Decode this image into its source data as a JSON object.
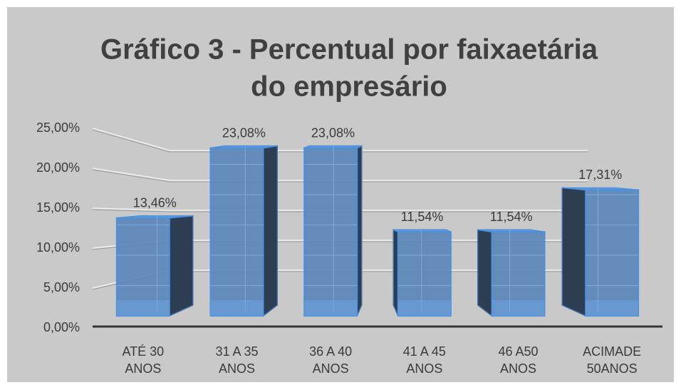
{
  "chart_data": {
    "type": "bar3d",
    "title": [
      "Gráfico 3 - Percentual por faixaetária",
      "do empresário"
    ],
    "categories": [
      [
        "ATÉ 30",
        "ANOS"
      ],
      [
        "31 A 35",
        "ANOS"
      ],
      [
        "36 A 40",
        "ANOS"
      ],
      [
        "41 A 45",
        "ANOS"
      ],
      [
        "46 A50",
        "ANOS"
      ],
      [
        "ACIMADE",
        "50ANOS"
      ]
    ],
    "values": [
      13.46,
      23.08,
      23.08,
      11.54,
      11.54,
      17.31
    ],
    "value_labels": [
      "13,46%",
      "23,08%",
      "23,08%",
      "11,54%",
      "11,54%",
      "17,31%"
    ],
    "color": "#5b87b8",
    "ylim": [
      0,
      25
    ],
    "yticks": [
      {
        "value": 0,
        "label": "0,00%"
      },
      {
        "value": 5,
        "label": "5,00%"
      },
      {
        "value": 10,
        "label": "10,00%"
      },
      {
        "value": 15,
        "label": "15,00%"
      },
      {
        "value": 20,
        "label": "20,00%"
      },
      {
        "value": 25,
        "label": "25,00%"
      }
    ],
    "grid": true
  }
}
